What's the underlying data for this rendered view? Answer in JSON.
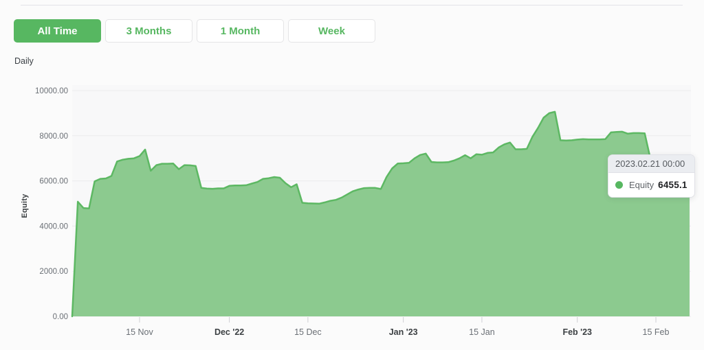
{
  "toolbar": {
    "buttons": [
      {
        "label": "All Time",
        "active": true
      },
      {
        "label": "3 Months",
        "active": false
      },
      {
        "label": "1 Month",
        "active": false
      },
      {
        "label": "Week",
        "active": false
      }
    ]
  },
  "frequency_label": "Daily",
  "colors": {
    "accent": "#57b761",
    "line": "#5db863",
    "area_fill": "#8cca8f",
    "grid": "#ebebed",
    "tick_mark": "#cfcfd4",
    "axis_text": "#6a6f75",
    "axis_text_emphasis": "#3c4043",
    "page_bg": "#fbfbfb",
    "plot_bg": "#f8f8f9"
  },
  "chart_data": {
    "type": "area",
    "title": "",
    "ylabel": "Equity",
    "xlabel": "",
    "interval": "daily",
    "ylim": [
      0,
      10000
    ],
    "grid": "horizontal",
    "legend_position": "none",
    "y_ticks": [
      "10000.00",
      "8000.00",
      "6000.00",
      "4000.00",
      "2000.00",
      "0.00"
    ],
    "x_ticks": [
      {
        "label": "15 Nov",
        "index": 12,
        "emphasis": false
      },
      {
        "label": "Dec '22",
        "index": 28,
        "emphasis": true
      },
      {
        "label": "15 Dec",
        "index": 42,
        "emphasis": false
      },
      {
        "label": "Jan '23",
        "index": 59,
        "emphasis": true
      },
      {
        "label": "15 Jan",
        "index": 73,
        "emphasis": false
      },
      {
        "label": "Feb '23",
        "index": 90,
        "emphasis": true
      },
      {
        "label": "15 Feb",
        "index": 104,
        "emphasis": false
      }
    ],
    "series": [
      {
        "name": "Equity",
        "values": [
          0,
          5080,
          4800,
          4780,
          5980,
          6090,
          6110,
          6220,
          6860,
          6940,
          6980,
          7000,
          7100,
          7390,
          6450,
          6700,
          6760,
          6760,
          6770,
          6520,
          6700,
          6690,
          6660,
          5690,
          5660,
          5650,
          5670,
          5670,
          5780,
          5800,
          5800,
          5810,
          5880,
          5950,
          6090,
          6120,
          6170,
          6140,
          5900,
          5720,
          5850,
          5030,
          5010,
          5000,
          4990,
          5050,
          5120,
          5160,
          5260,
          5400,
          5540,
          5620,
          5680,
          5690,
          5690,
          5640,
          6170,
          6550,
          6770,
          6780,
          6800,
          7000,
          7150,
          7210,
          6840,
          6820,
          6820,
          6830,
          6900,
          7000,
          7140,
          7000,
          7180,
          7160,
          7240,
          7260,
          7480,
          7620,
          7700,
          7400,
          7400,
          7420,
          7950,
          8350,
          8800,
          9000,
          9060,
          7800,
          7790,
          7800,
          7830,
          7850,
          7840,
          7840,
          7840,
          7850,
          8150,
          8170,
          8180,
          8090,
          8120,
          8120,
          8110,
          7000,
          6500,
          6480,
          6520,
          6490,
          6470,
          6460,
          6455.1
        ]
      }
    ],
    "hovered_point_index": 110
  },
  "tooltip": {
    "header": "2023.02.21 00:00",
    "series": "Equity",
    "value": "6455.1"
  }
}
